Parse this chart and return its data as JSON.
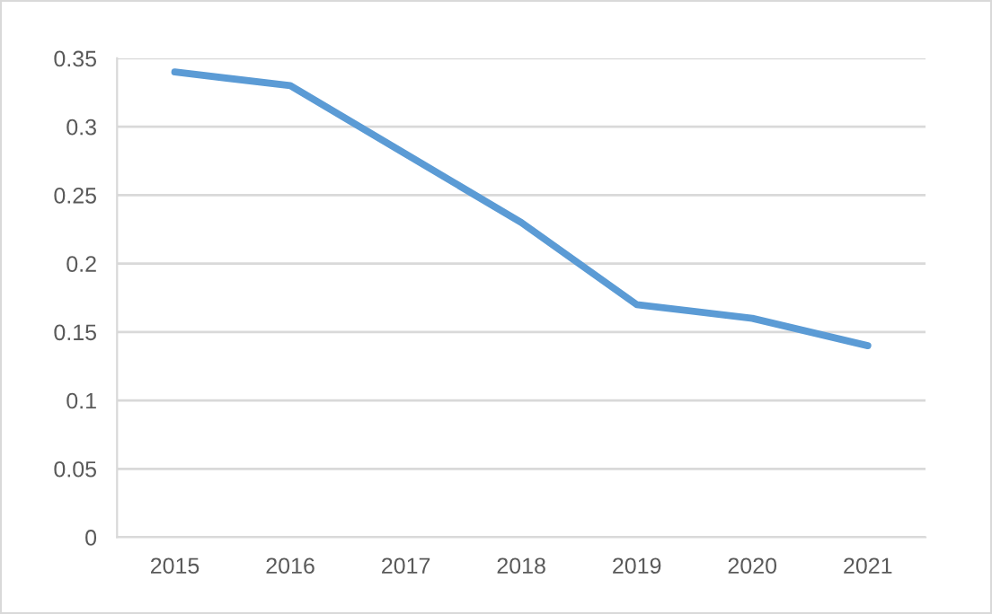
{
  "chart_data": {
    "type": "line",
    "categories": [
      "2015",
      "2016",
      "2017",
      "2018",
      "2019",
      "2020",
      "2021"
    ],
    "series": [
      {
        "color": "#5b9bd5",
        "values": [
          0.34,
          0.33,
          0.28,
          0.23,
          0.17,
          0.16,
          0.14
        ]
      }
    ],
    "ylim": [
      0,
      0.35
    ],
    "yticks": [
      0,
      0.05,
      0.1,
      0.15,
      0.2,
      0.25,
      0.3,
      0.35
    ],
    "grid": "y",
    "legend": false,
    "marker": "none",
    "line_style": "solid"
  }
}
